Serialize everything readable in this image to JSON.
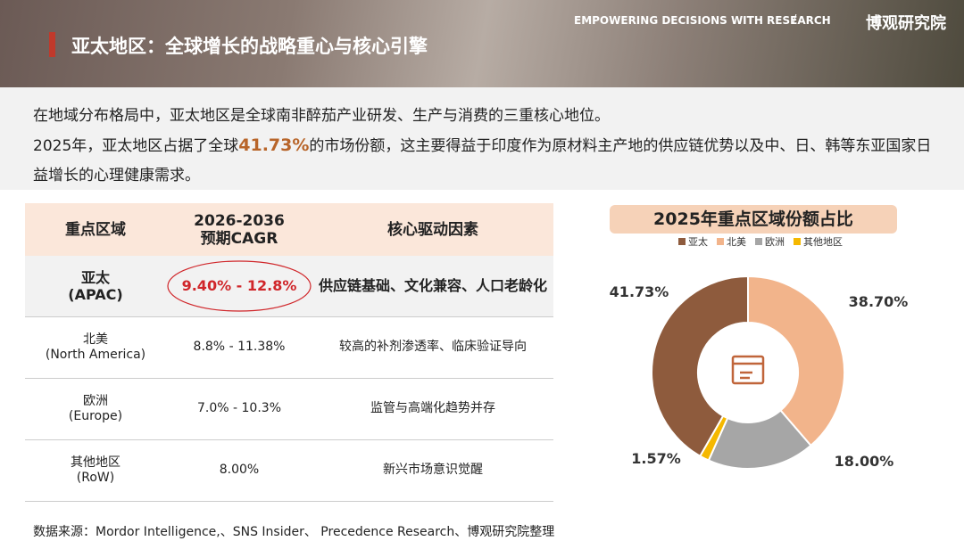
{
  "header": {
    "tagline": "EMPOWERING DECISIONS WITH RESEARCH",
    "separator": "/",
    "brand": "博观研究院",
    "title": "亚太地区：全球增长的战略重心与核心引擎"
  },
  "intro": {
    "line1": "在地域分布格局中，亚太地区是全球南非醉茄产业研发、生产与消费的三重核心地位。",
    "line2_before": "2025年，亚太地区占据了全球",
    "highlight": "41.73%",
    "line2_after": "的市场份额，这主要得益于印度作为原材料主产地的供应链优势以及中、日、韩等东亚国家日益增长的心理健康需求。"
  },
  "table": {
    "header": [
      [
        "重点区域"
      ],
      [
        "2026-2036",
        "预期CAGR"
      ],
      [
        "核心驱动因素"
      ]
    ],
    "rows": [
      [
        [
          "亚太",
          "(APAC)"
        ],
        "9.40% - 12.8%",
        "供应链基础、文化兼容、人口老龄化"
      ],
      [
        [
          "北美",
          "(North America)"
        ],
        "8.8% - 11.38%",
        "较高的补剂渗透率、临床验证导向"
      ],
      [
        [
          "欧洲",
          "(Europe)"
        ],
        "7.0% - 10.3%",
        "监管与高端化趋势并存"
      ],
      [
        [
          "其他地区",
          "(RoW)"
        ],
        "8.00%",
        "新兴市场意识觉醒"
      ]
    ]
  },
  "chart_data": {
    "type": "donut",
    "title": "2025年重点区域份额占比",
    "categories": [
      "亚太",
      "北美",
      "欧洲",
      "其他地区"
    ],
    "values": [
      41.73,
      38.7,
      18,
      1.57
    ],
    "value_labels": [
      "41.73%",
      "38.70%",
      "18.00%",
      "1.57%"
    ],
    "colors": [
      "#8e5b3d",
      "#f2b48b",
      "#a6a6a6",
      "#f5b800"
    ]
  },
  "source": "数据来源：Mordor Intelligence,、SNS Insider、 Precedence Research、博观研究院整理"
}
